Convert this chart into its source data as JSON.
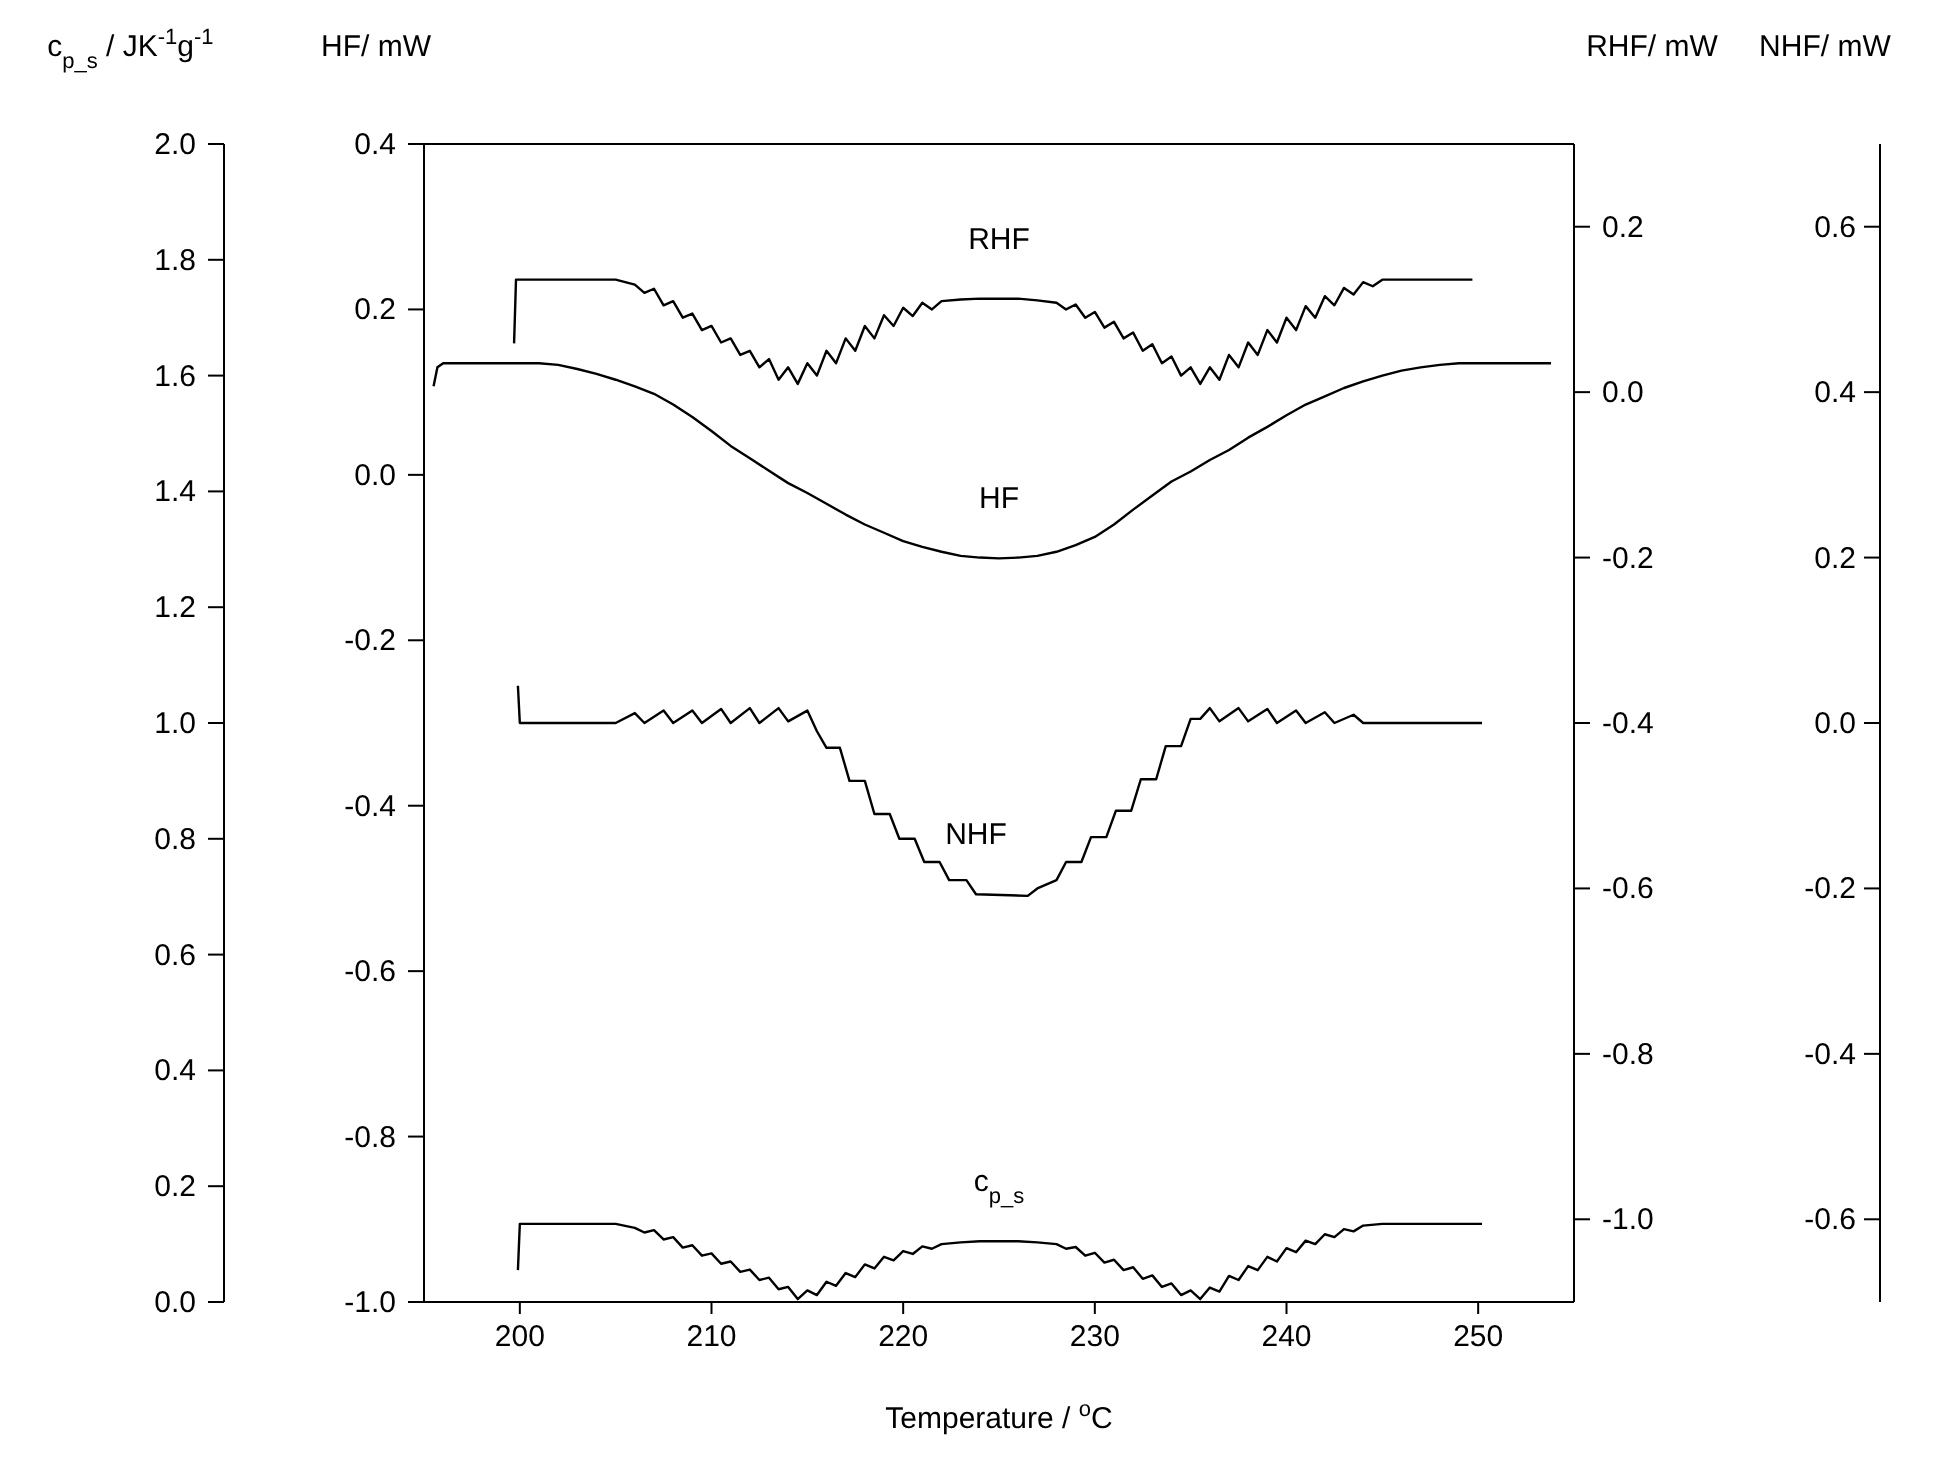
{
  "chart_data": [
    {
      "type": "line",
      "xlabel": "Temperature / $^{o}$C",
      "ylabel": "c$_{p_s}$ / JK$^{-1}$g$^{-1}$",
      "y2label": "HF/ mW",
      "y3label": "RHF/ mW",
      "xlim": [
        195,
        255
      ],
      "xticks": [
        200,
        210,
        220,
        230,
        240,
        250
      ],
      "ylim": [
        0,
        2
      ],
      "yticks": [
        {
          "value": 0,
          "label": "0.0"
        },
        0.2,
        0.4,
        0.6,
        0.8,
        {
          "value": 1,
          "label": "1.0"
        },
        1.2,
        1.4,
        1.6,
        1.8,
        {
          "value": 2,
          "label": "2.0"
        }
      ],
      "y2lim": [
        -1,
        0.4
      ],
      "y2ticks": [
        {
          "value": -1,
          "label": "-1.0"
        },
        -0.8,
        -0.6,
        -0.4,
        -0.2,
        {
          "value": 0,
          "label": "0.0"
        },
        0.2,
        0.4
      ],
      "y3lim": [
        -1.1,
        0.3
      ],
      "y3ticks": [
        {
          "value": -1,
          "label": "-1.0"
        },
        -0.8,
        -0.6,
        -0.4,
        -0.2,
        {
          "value": 0,
          "label": "0.0"
        },
        0.2
      ],
      "series": [
        {
          "name": "RHF",
          "color": "#000000",
          "axis": "y3",
          "x": [
            199.7,
            199.8,
            205,
            206,
            206.5,
            207,
            207.5,
            208,
            208.5,
            209,
            209.5,
            210,
            210.5,
            211,
            211.5,
            212,
            212.5,
            213,
            213.5,
            214,
            214.5,
            215,
            215.5,
            216,
            216.5,
            217,
            217.5,
            218,
            218.5,
            219,
            219.5,
            220,
            220.5,
            221,
            221.5,
            222,
            223,
            224,
            225,
            226,
            227,
            228,
            228.5,
            229,
            229.5,
            230,
            230.5,
            231,
            231.5,
            232,
            232.5,
            233,
            233.5,
            234,
            234.5,
            235,
            235.5,
            236,
            236.5,
            237,
            237.5,
            238,
            238.5,
            239,
            239.5,
            240,
            240.5,
            241,
            241.5,
            242,
            242.5,
            243,
            243.5,
            244,
            244.5,
            245,
            249.7
          ],
          "values": [
            0.059,
            0.136,
            0.136,
            0.13,
            0.12,
            0.125,
            0.105,
            0.11,
            0.09,
            0.095,
            0.075,
            0.08,
            0.06,
            0.065,
            0.045,
            0.05,
            0.03,
            0.04,
            0.015,
            0.03,
            0.01,
            0.035,
            0.02,
            0.05,
            0.035,
            0.065,
            0.05,
            0.08,
            0.065,
            0.093,
            0.08,
            0.102,
            0.092,
            0.108,
            0.1,
            0.11,
            0.112,
            0.113,
            0.113,
            0.113,
            0.111,
            0.108,
            0.1,
            0.106,
            0.09,
            0.097,
            0.078,
            0.085,
            0.065,
            0.072,
            0.05,
            0.058,
            0.035,
            0.043,
            0.02,
            0.03,
            0.01,
            0.03,
            0.015,
            0.045,
            0.03,
            0.06,
            0.045,
            0.075,
            0.06,
            0.09,
            0.075,
            0.104,
            0.09,
            0.116,
            0.105,
            0.126,
            0.118,
            0.133,
            0.128,
            0.136,
            0.136
          ]
        },
        {
          "name": "HF",
          "color": "#000000",
          "axis": "y2",
          "x": [
            195.5,
            195.7,
            196,
            201,
            202,
            203,
            204,
            205,
            206,
            207,
            208,
            209,
            210,
            211,
            212,
            213,
            214,
            215,
            216,
            217,
            218,
            219,
            220,
            221,
            222,
            223,
            224,
            225,
            226,
            227,
            228,
            229,
            230,
            231,
            232,
            233,
            234,
            235,
            236,
            237,
            238,
            239,
            240,
            241,
            242,
            243,
            244,
            245,
            246,
            247,
            248,
            249,
            253.8
          ],
          "values": [
            0.107,
            0.13,
            0.135,
            0.135,
            0.133,
            0.128,
            0.122,
            0.115,
            0.107,
            0.098,
            0.085,
            0.07,
            0.053,
            0.035,
            0.02,
            0.005,
            -0.01,
            -0.022,
            -0.035,
            -0.048,
            -0.06,
            -0.07,
            -0.08,
            -0.087,
            -0.093,
            -0.098,
            -0.1,
            -0.101,
            -0.1,
            -0.098,
            -0.093,
            -0.085,
            -0.075,
            -0.06,
            -0.042,
            -0.025,
            -0.008,
            0.004,
            0.018,
            0.03,
            0.045,
            0.058,
            0.072,
            0.085,
            0.095,
            0.105,
            0.113,
            0.12,
            0.126,
            0.13,
            0.133,
            0.135,
            0.135
          ]
        },
        {
          "name": "c$_{p_s}$",
          "color": "#000000",
          "x": [
            199.9,
            200,
            205,
            206,
            206.5,
            207,
            207.5,
            208,
            208.5,
            209,
            209.5,
            210,
            210.5,
            211,
            211.5,
            212,
            212.5,
            213,
            213.5,
            214,
            214.5,
            215,
            215.5,
            216,
            216.5,
            217,
            217.5,
            218,
            218.5,
            219,
            219.5,
            220,
            220.5,
            221,
            221.5,
            222,
            223,
            224,
            225,
            226,
            227,
            228,
            228.5,
            229,
            229.5,
            230,
            230.5,
            231,
            231.5,
            232,
            232.5,
            233,
            233.5,
            234,
            234.5,
            235,
            235.5,
            236,
            236.5,
            237,
            237.5,
            238,
            238.5,
            239,
            239.5,
            240,
            240.5,
            241,
            241.5,
            242,
            242.5,
            243,
            243.5,
            244,
            245,
            250.2
          ],
          "values": [
            0.055,
            0.135,
            0.135,
            0.128,
            0.12,
            0.124,
            0.108,
            0.112,
            0.094,
            0.098,
            0.08,
            0.084,
            0.066,
            0.07,
            0.052,
            0.056,
            0.038,
            0.042,
            0.022,
            0.026,
            0.005,
            0.02,
            0.012,
            0.035,
            0.028,
            0.05,
            0.043,
            0.065,
            0.058,
            0.078,
            0.072,
            0.088,
            0.083,
            0.096,
            0.092,
            0.1,
            0.103,
            0.105,
            0.105,
            0.105,
            0.103,
            0.1,
            0.092,
            0.095,
            0.08,
            0.085,
            0.068,
            0.073,
            0.055,
            0.06,
            0.04,
            0.046,
            0.026,
            0.032,
            0.012,
            0.02,
            0.005,
            0.025,
            0.018,
            0.045,
            0.038,
            0.062,
            0.055,
            0.078,
            0.07,
            0.093,
            0.086,
            0.106,
            0.1,
            0.117,
            0.112,
            0.126,
            0.122,
            0.132,
            0.135,
            0.135
          ]
        }
      ]
    },
    {
      "type": "line",
      "ylabel": "NHF/ mW",
      "tick_labels": "y",
      "xlim": [
        195,
        255
      ],
      "ylim": [
        -0.7,
        0.7
      ],
      "yticks": [
        -0.6,
        -0.4,
        -0.2,
        {
          "value": 0,
          "label": "0.0"
        },
        0.2,
        0.4,
        0.6
      ],
      "series": [
        {
          "name": "NHF",
          "color": "#000000",
          "x": [
            199.9,
            200,
            205,
            206,
            206.5,
            207.5,
            208,
            209,
            209.5,
            210.5,
            211,
            212,
            212.5,
            213.5,
            214,
            215,
            215.5,
            216,
            216.7,
            217.2,
            218,
            218.5,
            219.3,
            219.8,
            220.6,
            221.1,
            221.9,
            222.4,
            223.3,
            223.8,
            226.5,
            227,
            228,
            228.5,
            229.3,
            229.8,
            230.6,
            231.1,
            231.9,
            232.4,
            233.2,
            233.7,
            234.5,
            235,
            235.5,
            236,
            236.5,
            237.5,
            238,
            239,
            239.5,
            240.5,
            241,
            242,
            242.5,
            243.5,
            244,
            245,
            250.2
          ],
          "values": [
            0.045,
            0,
            0,
            0.012,
            0,
            0.015,
            0,
            0.015,
            0,
            0.017,
            0,
            0.018,
            0,
            0.018,
            0.002,
            0.015,
            -0.01,
            -0.03,
            -0.03,
            -0.07,
            -0.07,
            -0.11,
            -0.11,
            -0.14,
            -0.14,
            -0.168,
            -0.168,
            -0.19,
            -0.19,
            -0.207,
            -0.209,
            -0.2,
            -0.19,
            -0.168,
            -0.168,
            -0.138,
            -0.138,
            -0.106,
            -0.106,
            -0.068,
            -0.068,
            -0.028,
            -0.028,
            0.005,
            0.005,
            0.018,
            0.002,
            0.018,
            0.002,
            0.017,
            0,
            0.015,
            0,
            0.013,
            0,
            0.01,
            0,
            0,
            0
          ]
        }
      ]
    }
  ]
}
